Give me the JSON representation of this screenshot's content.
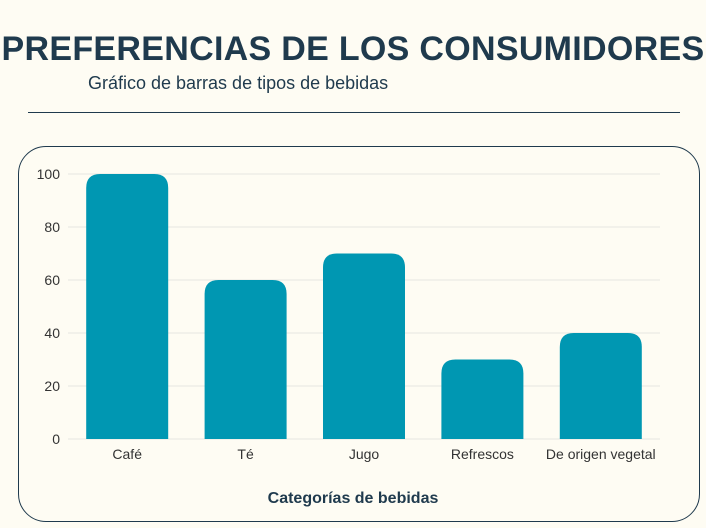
{
  "chart_data": {
    "type": "bar",
    "title": "PREFERENCIAS DE LOS CONSUMIDORES",
    "subtitle": "Gráfico de barras de tipos de bebidas",
    "xlabel": "Categorías de bebidas",
    "ylabel": "",
    "categories": [
      "Café",
      "Té",
      "Jugo",
      "Refrescos",
      "De origen vegetal"
    ],
    "values": [
      100,
      60,
      70,
      30,
      40
    ],
    "ylim": [
      0,
      100
    ],
    "yticks": [
      0,
      20,
      40,
      60,
      80,
      100
    ],
    "grid": true,
    "colors": {
      "bar": "#0097b2",
      "title": "#1f3a4d",
      "grid": "#e6e6e0"
    }
  }
}
